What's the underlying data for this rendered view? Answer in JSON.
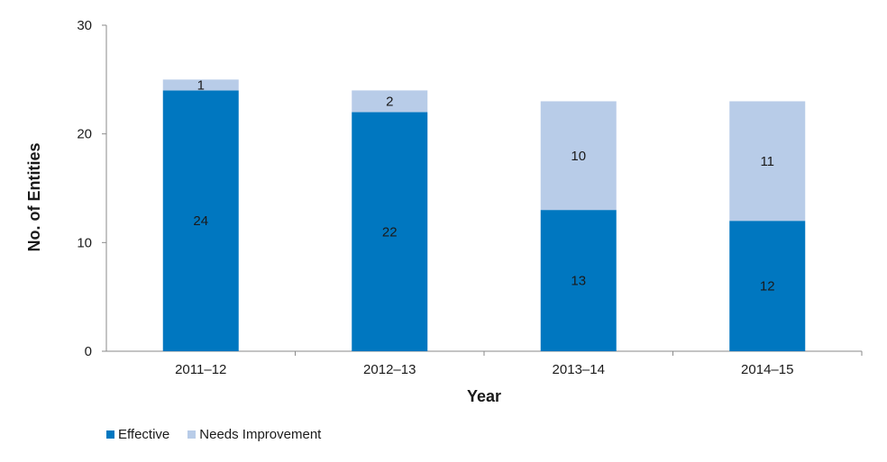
{
  "chart_data": {
    "type": "bar",
    "stacked": true,
    "categories": [
      "2011–12",
      "2012–13",
      "2013–14",
      "2014–15"
    ],
    "series": [
      {
        "name": "Effective",
        "values": [
          24,
          22,
          13,
          12
        ],
        "color": "#0077C0"
      },
      {
        "name": "Needs Improvement",
        "values": [
          1,
          2,
          10,
          11
        ],
        "color": "#B8CCE8"
      }
    ],
    "xlabel": "Year",
    "ylabel": "No. of Entities",
    "ylim": [
      0,
      30
    ],
    "yticks": [
      0,
      10,
      20,
      30
    ],
    "grid": false,
    "legend_position": "bottom-left"
  }
}
